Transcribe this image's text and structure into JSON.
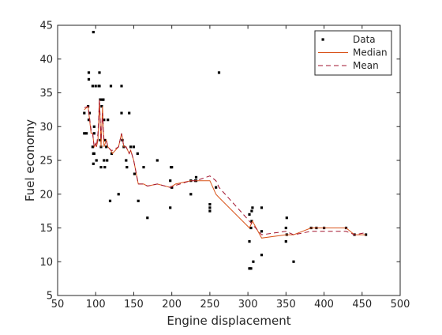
{
  "chart_data": {
    "type": "scatter",
    "xlabel": "Engine displacement",
    "ylabel": "Fuel economy",
    "xlim": [
      50,
      500
    ],
    "ylim": [
      5,
      45
    ],
    "xticks": [
      50,
      100,
      150,
      200,
      250,
      300,
      350,
      400,
      450,
      500
    ],
    "yticks": [
      5,
      10,
      15,
      20,
      25,
      30,
      35,
      40,
      45
    ],
    "grid": false,
    "legend_position": "top-right",
    "series": [
      {
        "name": "Data",
        "kind": "markers",
        "color": "#000000",
        "points": [
          [
            85,
            32
          ],
          [
            85,
            29
          ],
          [
            88,
            29
          ],
          [
            90,
            33
          ],
          [
            91,
            31
          ],
          [
            91,
            37
          ],
          [
            91,
            38
          ],
          [
            92,
            32
          ],
          [
            96,
            36
          ],
          [
            96,
            27
          ],
          [
            97,
            24.5
          ],
          [
            97,
            26
          ],
          [
            97,
            44
          ],
          [
            98,
            30
          ],
          [
            98,
            29
          ],
          [
            98,
            26
          ],
          [
            100,
            36
          ],
          [
            101,
            25
          ],
          [
            104,
            36
          ],
          [
            105,
            38
          ],
          [
            105,
            36
          ],
          [
            106,
            34
          ],
          [
            106,
            28
          ],
          [
            107,
            27
          ],
          [
            107,
            24
          ],
          [
            108,
            33
          ],
          [
            109,
            34
          ],
          [
            110,
            34
          ],
          [
            111,
            31
          ],
          [
            111,
            25
          ],
          [
            112,
            28
          ],
          [
            112,
            24
          ],
          [
            114,
            27
          ],
          [
            115,
            25
          ],
          [
            116,
            31
          ],
          [
            119,
            19
          ],
          [
            120,
            36
          ],
          [
            121,
            26
          ],
          [
            130,
            20
          ],
          [
            134,
            36
          ],
          [
            134,
            32
          ],
          [
            135,
            28
          ],
          [
            137,
            27
          ],
          [
            140,
            25
          ],
          [
            141,
            24
          ],
          [
            144,
            32
          ],
          [
            146,
            27
          ],
          [
            150,
            27
          ],
          [
            151,
            23
          ],
          [
            155,
            26
          ],
          [
            156,
            19
          ],
          [
            163,
            24
          ],
          [
            168,
            16.5
          ],
          [
            181,
            25
          ],
          [
            198,
            22
          ],
          [
            198,
            18
          ],
          [
            199,
            24
          ],
          [
            200,
            21
          ],
          [
            200,
            24
          ],
          [
            200,
            21
          ],
          [
            225,
            20
          ],
          [
            225,
            22
          ],
          [
            231,
            22
          ],
          [
            232,
            22
          ],
          [
            232,
            22.5
          ],
          [
            250,
            18.5
          ],
          [
            250,
            18
          ],
          [
            250,
            17.5
          ],
          [
            258,
            21
          ],
          [
            262,
            38
          ],
          [
            302,
            17
          ],
          [
            302,
            13
          ],
          [
            302,
            9
          ],
          [
            304,
            15
          ],
          [
            304,
            9
          ],
          [
            305,
            16
          ],
          [
            305,
            17.5
          ],
          [
            306,
            18
          ],
          [
            307,
            10
          ],
          [
            318,
            18
          ],
          [
            318,
            11
          ],
          [
            318,
            14.5
          ],
          [
            351,
            16.5
          ],
          [
            350,
            15
          ],
          [
            350,
            13
          ],
          [
            351,
            14
          ],
          [
            360,
            10
          ],
          [
            383,
            15
          ],
          [
            390,
            15
          ],
          [
            400,
            15
          ],
          [
            429,
            15
          ],
          [
            440,
            14
          ],
          [
            455,
            14
          ]
        ]
      },
      {
        "name": "Median",
        "kind": "line",
        "color": "#d95319",
        "points": [
          [
            85,
            32.5
          ],
          [
            90,
            33
          ],
          [
            94,
            29
          ],
          [
            96,
            29
          ],
          [
            98,
            27
          ],
          [
            100,
            27.5
          ],
          [
            101,
            27
          ],
          [
            103,
            28
          ],
          [
            105,
            34
          ],
          [
            107,
            27
          ],
          [
            109,
            33
          ],
          [
            111,
            27
          ],
          [
            114,
            28
          ],
          [
            116,
            27
          ],
          [
            120,
            26.5
          ],
          [
            122,
            26
          ],
          [
            130,
            27
          ],
          [
            134,
            29
          ],
          [
            137,
            27
          ],
          [
            140,
            27
          ],
          [
            144,
            26
          ],
          [
            146,
            26.5
          ],
          [
            150,
            25
          ],
          [
            156,
            21.5
          ],
          [
            163,
            21.5
          ],
          [
            168,
            21.2
          ],
          [
            181,
            21.5
          ],
          [
            198,
            21
          ],
          [
            205,
            21.5
          ],
          [
            225,
            22
          ],
          [
            232,
            22
          ],
          [
            250,
            22
          ],
          [
            258,
            20
          ],
          [
            262,
            19.5
          ],
          [
            302,
            15
          ],
          [
            306,
            16
          ],
          [
            318,
            13.5
          ],
          [
            350,
            14
          ],
          [
            360,
            14
          ],
          [
            383,
            15
          ],
          [
            400,
            15
          ],
          [
            429,
            15
          ],
          [
            440,
            14
          ],
          [
            455,
            14
          ]
        ]
      },
      {
        "name": "Mean",
        "kind": "dashed-line",
        "color": "#a2142f",
        "points": [
          [
            85,
            32.8
          ],
          [
            90,
            33
          ],
          [
            94,
            29.5
          ],
          [
            96,
            29
          ],
          [
            98,
            27
          ],
          [
            100,
            27.5
          ],
          [
            101,
            27
          ],
          [
            103,
            29
          ],
          [
            105,
            34
          ],
          [
            107,
            28
          ],
          [
            109,
            32
          ],
          [
            111,
            28
          ],
          [
            114,
            28
          ],
          [
            116,
            27
          ],
          [
            120,
            26.5
          ],
          [
            122,
            26.5
          ],
          [
            130,
            27
          ],
          [
            134,
            29
          ],
          [
            137,
            27
          ],
          [
            140,
            27
          ],
          [
            144,
            26
          ],
          [
            146,
            26.5
          ],
          [
            150,
            25
          ],
          [
            156,
            21.5
          ],
          [
            163,
            21.5
          ],
          [
            168,
            21.2
          ],
          [
            181,
            21.5
          ],
          [
            198,
            21
          ],
          [
            205,
            21.3
          ],
          [
            225,
            22
          ],
          [
            232,
            22
          ],
          [
            250,
            22.7
          ],
          [
            258,
            22
          ],
          [
            262,
            21
          ],
          [
            302,
            16
          ],
          [
            306,
            15.5
          ],
          [
            318,
            14
          ],
          [
            350,
            14.5
          ],
          [
            360,
            14
          ],
          [
            383,
            14.5
          ],
          [
            400,
            14.5
          ],
          [
            429,
            14.5
          ],
          [
            440,
            14
          ],
          [
            455,
            14.3
          ]
        ]
      }
    ]
  }
}
